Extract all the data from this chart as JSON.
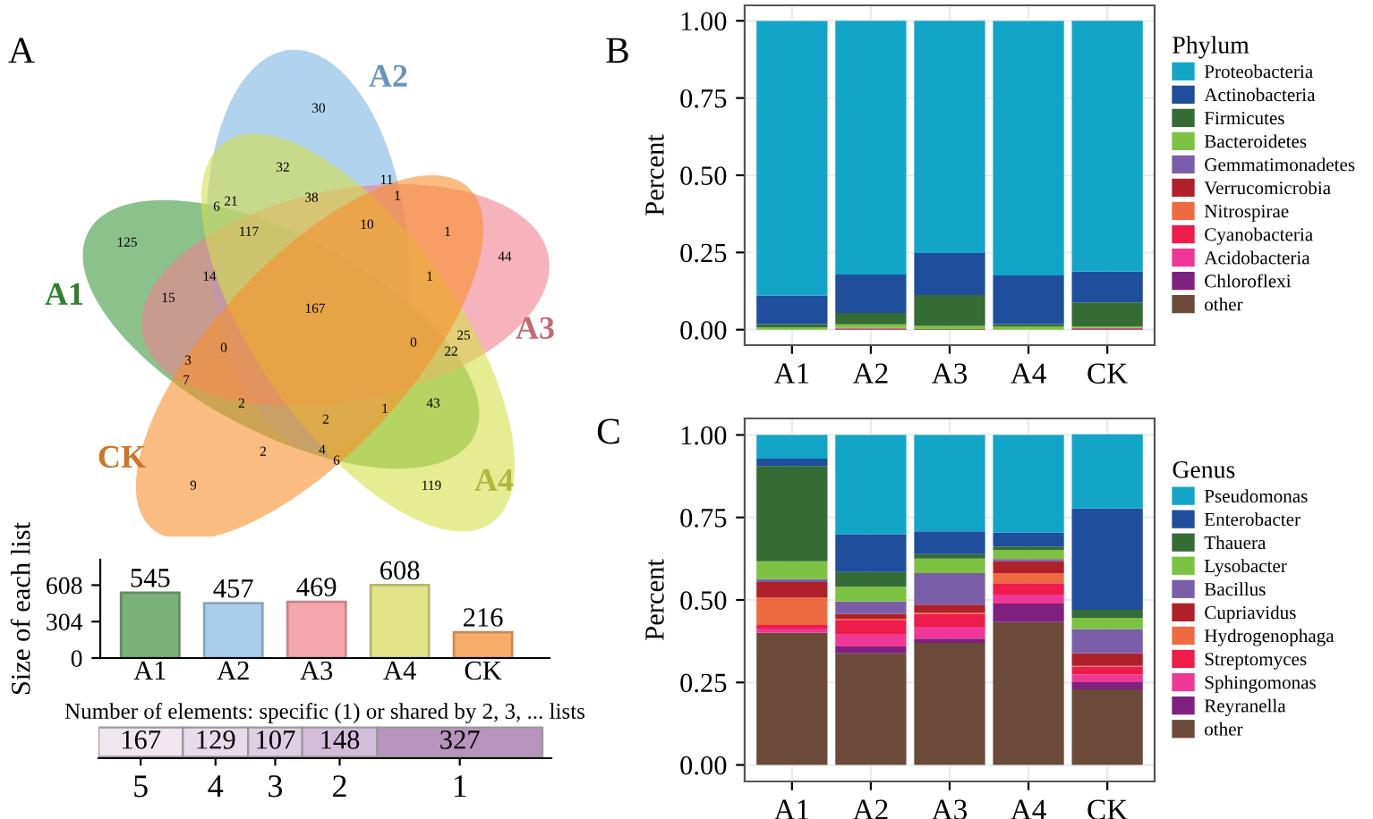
{
  "chart_data": [
    {
      "type": "other",
      "title": "A",
      "categories": [
        "A1",
        "A2",
        "A3",
        "A4",
        "CK"
      ],
      "colors": [
        "#3d9a3d",
        "#7fb5e3",
        "#f08090",
        "#d6df4a",
        "#f98f2e"
      ],
      "annotations": [
        "30",
        "32",
        "11",
        "21",
        "6",
        "38",
        "1",
        "117",
        "10",
        "1",
        "125",
        "44",
        "14",
        "1",
        "15",
        "167",
        "25",
        "0",
        "0",
        "22",
        "3",
        "7",
        "2",
        "1",
        "43",
        "2",
        "2",
        "4",
        "6",
        "9",
        "119"
      ]
    },
    {
      "type": "bar",
      "ylabel": "Size of each list",
      "categories": [
        "A1",
        "A2",
        "A3",
        "A4",
        "CK"
      ],
      "values": [
        545,
        457,
        469,
        608,
        216
      ],
      "colors": [
        "#7ab27a",
        "#aacdea",
        "#f5a7ad",
        "#e3e38a",
        "#f9ad6a"
      ],
      "ylim": [
        0,
        820
      ],
      "yticks": [
        0,
        304,
        608
      ],
      "data_labels": true,
      "grid": false
    },
    {
      "type": "bar",
      "orientation": "horizontal",
      "stacked": true,
      "title": "Number of elements: specific (1) or shared by 2, 3, ... lists",
      "categories": [
        null
      ],
      "data_labels": true,
      "series": [
        {
          "name": "5",
          "color": "#efe6f0",
          "values": [
            167
          ]
        },
        {
          "name": "4",
          "color": "#e8dbeb",
          "values": [
            129
          ]
        },
        {
          "name": "3",
          "color": "#e0cfe4",
          "values": [
            107
          ]
        },
        {
          "name": "2",
          "color": "#d4bddb",
          "values": [
            148
          ]
        },
        {
          "name": "1",
          "color": "#b894bf",
          "values": [
            327
          ]
        }
      ]
    },
    {
      "type": "bar",
      "stacked": true,
      "title": "B",
      "ylabel": "Percent",
      "legend_title": "Phylum",
      "legend": "right",
      "grid": true,
      "categories": [
        "A1",
        "A2",
        "A3",
        "A4",
        "CK"
      ],
      "ylim": [
        -0.05,
        1.05
      ],
      "yticks": [
        {
          "value": 0,
          "label": "0.00"
        },
        {
          "value": 0.25,
          "label": "0.25"
        },
        {
          "value": 0.5,
          "label": "0.50"
        },
        {
          "value": 0.75,
          "label": "0.75"
        },
        {
          "value": 1,
          "label": "1.00"
        }
      ],
      "series": [
        {
          "name": "other",
          "color": "#6b4a3a",
          "values": [
            null,
            0.003,
            0.002,
            null,
            0.002
          ]
        },
        {
          "name": "Chloroflexi",
          "color": "#7e217f",
          "values": [
            0,
            0,
            0,
            0,
            0
          ]
        },
        {
          "name": "Acidobacteria",
          "color": "#ee3796",
          "values": [
            0,
            0.003,
            0,
            0,
            0.004
          ]
        },
        {
          "name": "Cyanobacteria",
          "color": "#ee1b4b",
          "values": [
            0,
            0,
            0,
            0,
            0
          ]
        },
        {
          "name": "Nitrospirae",
          "color": "#ee6b42",
          "values": [
            0,
            0,
            0,
            0,
            0
          ]
        },
        {
          "name": "Verrucomicrobia",
          "color": "#b0202b",
          "values": [
            0,
            0,
            0,
            0,
            0
          ]
        },
        {
          "name": "Gemmatimonadetes",
          "color": "#7b5ea8",
          "values": [
            0,
            0,
            0,
            0,
            0
          ]
        },
        {
          "name": "Bacteroidetes",
          "color": "#7dc142",
          "values": [
            0.008,
            0.011,
            0.01,
            0.011,
            0.004
          ]
        },
        {
          "name": "Firmicutes",
          "color": "#356b35",
          "values": [
            0.01,
            0.037,
            0.1,
            0.007,
            0.078
          ]
        },
        {
          "name": "Actinobacteria",
          "color": "#1f4e9c",
          "values": [
            0.093,
            0.125,
            0.136,
            0.158,
            0.1
          ]
        },
        {
          "name": "Proteobacteria",
          "color": "#12a5c8",
          "values": [
            0.888,
            0.821,
            0.752,
            0.823,
            0.812
          ]
        }
      ]
    },
    {
      "type": "bar",
      "stacked": true,
      "title": "C",
      "ylabel": "Percent",
      "legend_title": "Genus",
      "legend": "right",
      "grid": true,
      "categories": [
        "A1",
        "A2",
        "A3",
        "A4",
        "CK"
      ],
      "ylim": [
        -0.05,
        1.05
      ],
      "yticks": [
        {
          "value": 0,
          "label": "0.00"
        },
        {
          "value": 0.25,
          "label": "0.25"
        },
        {
          "value": 0.5,
          "label": "0.50"
        },
        {
          "value": 0.75,
          "label": "0.75"
        },
        {
          "value": 1,
          "label": "1.00"
        }
      ],
      "series": [
        {
          "name": "other",
          "color": "#6b4a3a",
          "values": [
            0.401,
            0.338,
            0.37,
            0.433,
            0.229
          ]
        },
        {
          "name": "Reyranella",
          "color": "#7e217f",
          "values": [
            0,
            0.021,
            0.013,
            0.056,
            0.022
          ]
        },
        {
          "name": "Sphingomonas",
          "color": "#ee3796",
          "values": [
            0.012,
            0.036,
            0.036,
            0.027,
            0.023
          ]
        },
        {
          "name": "Streptomyces",
          "color": "#ee1b4b",
          "values": [
            0.011,
            0.045,
            0.039,
            0.035,
            0.024
          ]
        },
        {
          "name": "Hydrogenophaga",
          "color": "#ee6b42",
          "values": [
            0.083,
            0.003,
            0.004,
            0.03,
            0.002
          ]
        },
        {
          "name": "Cupriavidus",
          "color": "#b0202b",
          "values": [
            0.047,
            0.015,
            0.024,
            0.036,
            0.038
          ]
        },
        {
          "name": "Bacillus",
          "color": "#7b5ea8",
          "values": [
            0.009,
            0.037,
            0.095,
            0.007,
            0.074
          ]
        },
        {
          "name": "Lysobacter",
          "color": "#7dc142",
          "values": [
            0.054,
            0.045,
            0.044,
            0.028,
            0.034
          ]
        },
        {
          "name": "Thauera",
          "color": "#356b35",
          "values": [
            0.289,
            0.045,
            0.014,
            0.01,
            0.024
          ]
        },
        {
          "name": "Enterobacter",
          "color": "#1f4e9c",
          "values": [
            0.022,
            0.114,
            0.069,
            0.042,
            0.308
          ]
        },
        {
          "name": "Pseudomonas",
          "color": "#12a5c8",
          "values": [
            0.072,
            0.301,
            0.292,
            0.296,
            0.224
          ]
        }
      ]
    }
  ]
}
